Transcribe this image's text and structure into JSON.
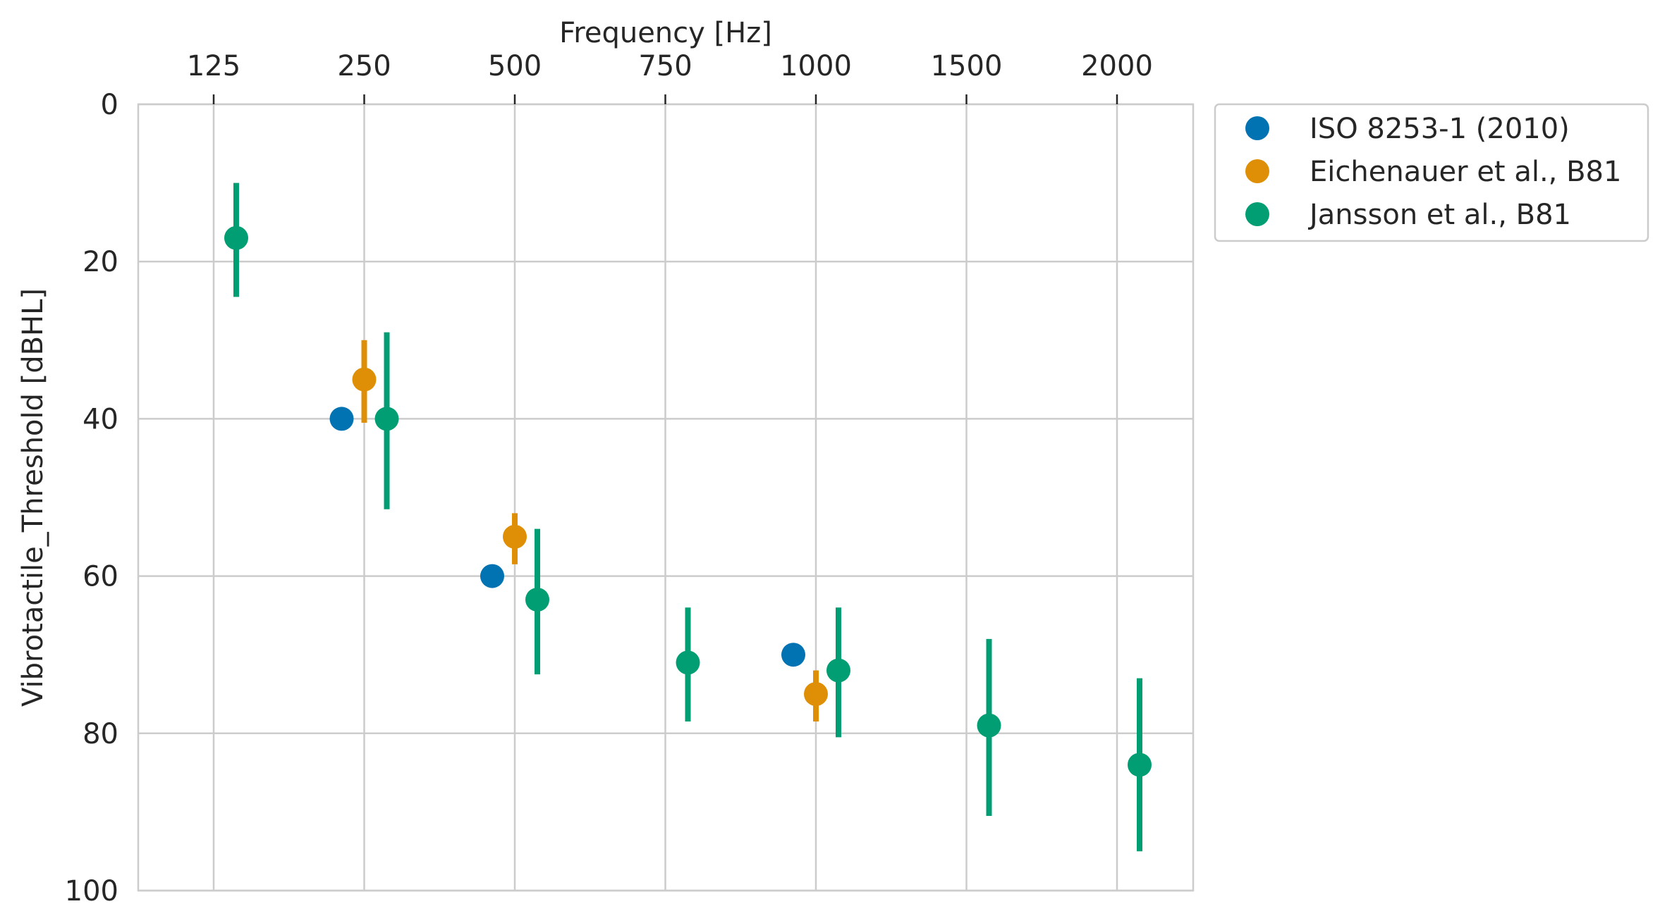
{
  "chart_data": {
    "type": "scatter",
    "xlabel": "Frequency [Hz]",
    "ylabel": "Vibrotactile_Threshold [dBHL]",
    "x_axis_position": "top",
    "y_inverted": true,
    "ylim": [
      0,
      100
    ],
    "categories": [
      "125",
      "250",
      "500",
      "750",
      "1000",
      "1500",
      "2000"
    ],
    "yticks": [
      "0",
      "20",
      "40",
      "60",
      "80",
      "100"
    ],
    "grid": true,
    "legend_position": "outside-right-top",
    "series": [
      {
        "name": "ISO 8253-1 (2010)",
        "color": "#0173b2",
        "points": [
          {
            "category": "250",
            "y": 40,
            "low": null,
            "high": null
          },
          {
            "category": "500",
            "y": 60,
            "low": null,
            "high": null
          },
          {
            "category": "1000",
            "y": 70,
            "low": null,
            "high": null
          }
        ]
      },
      {
        "name": "Eichenauer et al., B81",
        "color": "#de8f05",
        "points": [
          {
            "category": "250",
            "y": 35,
            "low": 30,
            "high": 40.5
          },
          {
            "category": "500",
            "y": 55,
            "low": 52,
            "high": 58.5
          },
          {
            "category": "1000",
            "y": 75,
            "low": 72,
            "high": 78.5
          }
        ]
      },
      {
        "name": "Jansson et al., B81",
        "color": "#029e73",
        "points": [
          {
            "category": "125",
            "y": 17,
            "low": 10,
            "high": 24.5
          },
          {
            "category": "250",
            "y": 40,
            "low": 29,
            "high": 51.5
          },
          {
            "category": "500",
            "y": 63,
            "low": 54,
            "high": 72.5
          },
          {
            "category": "750",
            "y": 71,
            "low": 64,
            "high": 78.5
          },
          {
            "category": "1000",
            "y": 72,
            "low": 64,
            "high": 80.5
          },
          {
            "category": "1500",
            "y": 79,
            "low": 68,
            "high": 90.5
          },
          {
            "category": "2000",
            "y": 84,
            "low": 73,
            "high": 95
          }
        ]
      }
    ]
  }
}
